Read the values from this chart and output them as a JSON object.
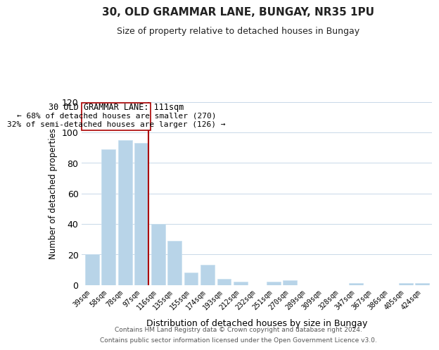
{
  "title": "30, OLD GRAMMAR LANE, BUNGAY, NR35 1PU",
  "subtitle": "Size of property relative to detached houses in Bungay",
  "xlabel": "Distribution of detached houses by size in Bungay",
  "ylabel": "Number of detached properties",
  "categories": [
    "39sqm",
    "58sqm",
    "78sqm",
    "97sqm",
    "116sqm",
    "135sqm",
    "155sqm",
    "174sqm",
    "193sqm",
    "212sqm",
    "232sqm",
    "251sqm",
    "270sqm",
    "289sqm",
    "309sqm",
    "328sqm",
    "347sqm",
    "367sqm",
    "386sqm",
    "405sqm",
    "424sqm"
  ],
  "values": [
    20,
    89,
    95,
    93,
    40,
    29,
    8,
    13,
    4,
    2,
    0,
    2,
    3,
    0,
    0,
    0,
    1,
    0,
    0,
    1,
    1
  ],
  "bar_color": "#b8d4e8",
  "bar_edge_color": "#c8dff0",
  "marker_line_index": 3,
  "marker_label": "30 OLD GRAMMAR LANE: 111sqm",
  "annotation_line1": "← 68% of detached houses are smaller (270)",
  "annotation_line2": "32% of semi-detached houses are larger (126) →",
  "marker_line_color": "#aa0000",
  "box_edge_color": "#aa0000",
  "ylim": [
    0,
    120
  ],
  "yticks": [
    0,
    20,
    40,
    60,
    80,
    100,
    120
  ],
  "footer_line1": "Contains HM Land Registry data © Crown copyright and database right 2024.",
  "footer_line2": "Contains public sector information licensed under the Open Government Licence v3.0.",
  "background_color": "#ffffff",
  "grid_color": "#c8d8e8"
}
